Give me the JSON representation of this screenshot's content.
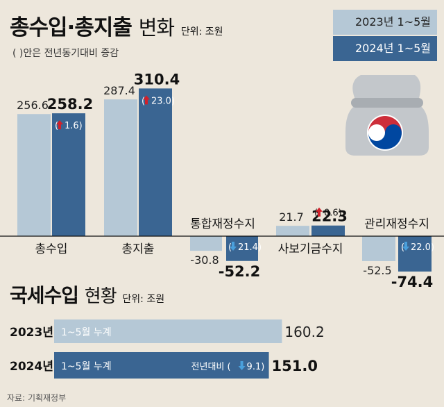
{
  "header": {
    "title_bold": "총수입·총지출",
    "title_light": "변화",
    "unit": "단위: 조원",
    "note": "( )안은 전년동기대비 증감"
  },
  "legend": {
    "y2023": "2023년 1~5월",
    "y2024": "2024년 1~5월"
  },
  "chart_data": [
    {
      "type": "bar",
      "title": "총수입·총지출 변화",
      "unit": "단위: 조원",
      "categories": [
        "총수입",
        "총지출",
        "통합재정수지",
        "사보기금수지",
        "관리재정수지"
      ],
      "series": [
        {
          "name": "2023년 1~5월",
          "values": [
            256.6,
            287.4,
            -30.8,
            21.7,
            -52.5
          ]
        },
        {
          "name": "2024년 1~5월",
          "values": [
            258.2,
            310.4,
            -52.2,
            22.3,
            -74.4
          ]
        }
      ],
      "value_labels_2023": [
        "256.6",
        "287.4",
        "-30.8",
        "21.7",
        "-52.5"
      ],
      "value_labels_2024": [
        "258.2",
        "310.4",
        "-52.2",
        "22.3",
        "-74.4"
      ],
      "changes": [
        {
          "direction": "up",
          "value": "1.6"
        },
        {
          "direction": "up",
          "value": "23.0"
        },
        {
          "direction": "down",
          "value": "21.4"
        },
        {
          "direction": "up",
          "value": "0.6"
        },
        {
          "direction": "down",
          "value": "22.0"
        }
      ],
      "colors": {
        "y2023": "#b5c8d6",
        "y2024": "#3a6592",
        "up": "#d0202a",
        "down": "#4aa0dc"
      }
    },
    {
      "type": "bar",
      "orientation": "horizontal",
      "title": "국세수입 현황",
      "unit": "단위: 조원",
      "categories": [
        "2023년",
        "2024년"
      ],
      "values": [
        160.2,
        151.0
      ],
      "value_labels": [
        "160.2",
        "151.0"
      ],
      "bar_text": [
        "1~5월 누계",
        "1~5월 누계"
      ],
      "change": {
        "label": "전년대비",
        "direction": "down",
        "value": "9.1"
      }
    }
  ],
  "tax": {
    "title_bold": "국세수입",
    "title_light": "현황",
    "unit": "단위: 조원"
  },
  "source": "자료: 기획재정부"
}
